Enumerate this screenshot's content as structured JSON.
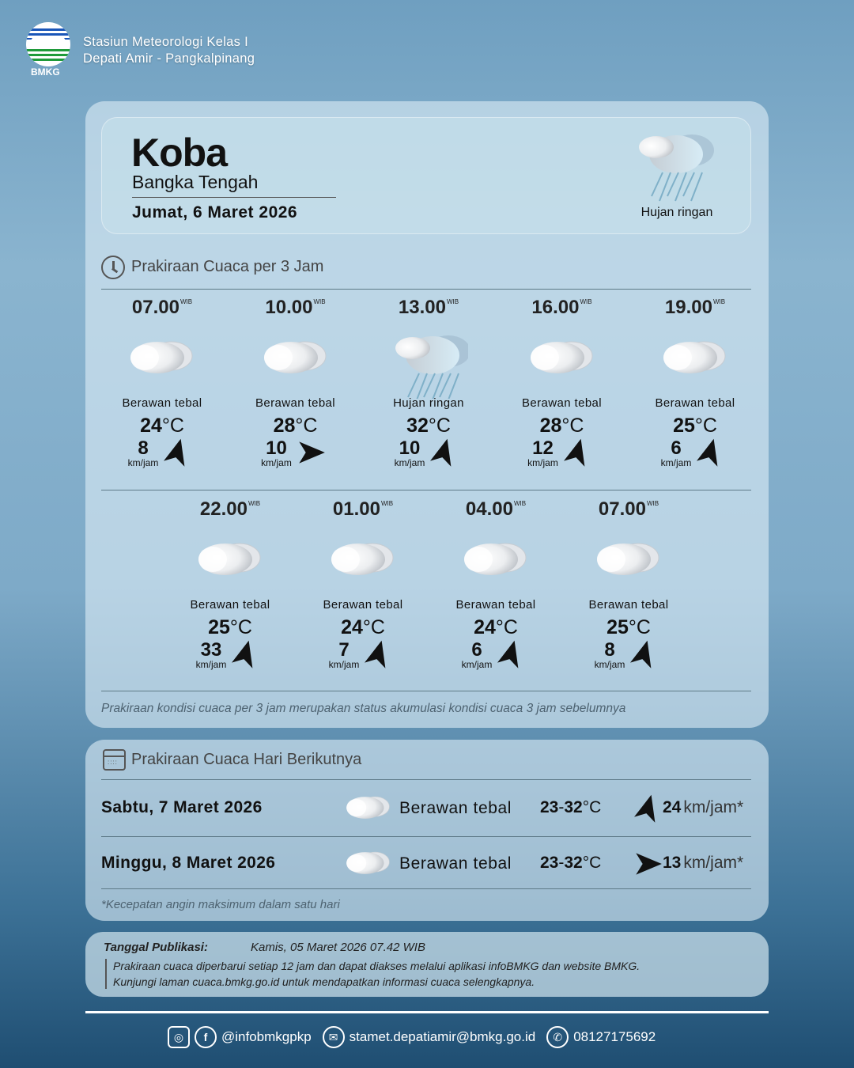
{
  "header": {
    "logo_text": "BMKG",
    "station_line1": "Stasiun Meteorologi Kelas I",
    "station_line2": "Depati Amir - Pangkalpinang"
  },
  "current": {
    "city": "Koba",
    "region": "Bangka Tengah",
    "date": "Jumat, 6 Maret 2026",
    "condition": "Hujan ringan",
    "icon": "light-rain-icon"
  },
  "hourly": {
    "title": "Prakiraan Cuaca per 3 Jam",
    "tz": "WIB",
    "unit": "°C",
    "wind_unit": "km/jam",
    "items": [
      {
        "time": "07.00",
        "condition": "Berawan tebal",
        "icon": "cloud-icon",
        "temp": "24",
        "wind": "8",
        "wind_heading_deg": 15
      },
      {
        "time": "10.00",
        "condition": "Berawan tebal",
        "icon": "cloud-icon",
        "temp": "28",
        "wind": "10",
        "wind_heading_deg": 90
      },
      {
        "time": "13.00",
        "condition": "Hujan ringan",
        "icon": "light-rain-icon",
        "temp": "32",
        "wind": "10",
        "wind_heading_deg": 15
      },
      {
        "time": "16.00",
        "condition": "Berawan tebal",
        "icon": "cloud-icon",
        "temp": "28",
        "wind": "12",
        "wind_heading_deg": 15
      },
      {
        "time": "19.00",
        "condition": "Berawan tebal",
        "icon": "cloud-icon",
        "temp": "25",
        "wind": "6",
        "wind_heading_deg": 15
      },
      {
        "time": "22.00",
        "condition": "Berawan tebal",
        "icon": "cloud-icon",
        "temp": "25",
        "wind": "33",
        "wind_heading_deg": 15
      },
      {
        "time": "01.00",
        "condition": "Berawan tebal",
        "icon": "cloud-icon",
        "temp": "24",
        "wind": "7",
        "wind_heading_deg": 15
      },
      {
        "time": "04.00",
        "condition": "Berawan tebal",
        "icon": "cloud-icon",
        "temp": "24",
        "wind": "6",
        "wind_heading_deg": 15
      },
      {
        "time": "07.00",
        "condition": "Berawan tebal",
        "icon": "cloud-icon",
        "temp": "25",
        "wind": "8",
        "wind_heading_deg": 15
      }
    ],
    "note": "Prakiraan kondisi cuaca per 3 jam merupakan status akumulasi kondisi cuaca 3 jam sebelumnya"
  },
  "daily": {
    "title": "Prakiraan Cuaca Hari Berikutnya",
    "items": [
      {
        "date": "Sabtu, 7 Maret 2026",
        "condition": "Berawan tebal",
        "icon": "cloud-icon",
        "tmin": "23",
        "tmax": "32",
        "unit": "°C",
        "wind": "24",
        "wind_unit": "km/jam*",
        "wind_heading_deg": 15
      },
      {
        "date": "Minggu, 8 Maret 2026",
        "condition": "Berawan tebal",
        "icon": "cloud-icon",
        "tmin": "23",
        "tmax": "32",
        "unit": "°C",
        "wind": "13",
        "wind_unit": "km/jam*",
        "wind_heading_deg": 90
      }
    ],
    "note": "*Kecepatan angin maksimum dalam satu hari"
  },
  "publication": {
    "label": "Tanggal Publikasi:",
    "value": "Kamis, 05 Maret 2026 07.42 WIB",
    "line1": "Prakiraan cuaca diperbarui setiap 12 jam dan dapat diakses melalui aplikasi infoBMKG dan website BMKG.",
    "line2": "Kunjungi laman cuaca.bmkg.go.id untuk mendapatkan informasi cuaca selengkapnya."
  },
  "footer": {
    "social": "@infobmkgpkp",
    "email": "stamet.depatiamir@bmkg.go.id",
    "phone": "08127175692"
  }
}
